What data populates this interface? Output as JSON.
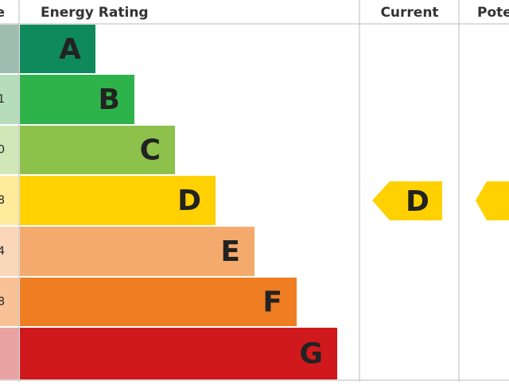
{
  "header": {
    "score": "e",
    "rating": "Energy Rating",
    "current": "Current",
    "potential": "Pote"
  },
  "rows": [
    {
      "letter": "A"
    },
    {
      "letter": "B",
      "score": "1"
    },
    {
      "letter": "C",
      "score": "0"
    },
    {
      "letter": "D",
      "score": "8"
    },
    {
      "letter": "E",
      "score": "4"
    },
    {
      "letter": "F",
      "score": "8"
    },
    {
      "letter": "G"
    }
  ],
  "current": "D"
}
